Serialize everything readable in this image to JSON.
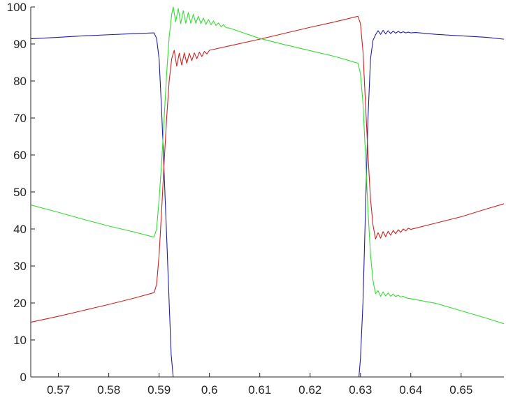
{
  "chart_data": {
    "type": "line",
    "title": "",
    "xlabel": "",
    "ylabel": "",
    "xlim": [
      0.5645,
      0.6585
    ],
    "ylim": [
      0,
      100
    ],
    "grid": false,
    "legend": "none",
    "x_ticks": [
      {
        "value": 0.57,
        "label": "0.57"
      },
      {
        "value": 0.58,
        "label": "0.58"
      },
      {
        "value": 0.59,
        "label": "0.59"
      },
      {
        "value": 0.6,
        "label": "0.6"
      },
      {
        "value": 0.61,
        "label": "0.61"
      },
      {
        "value": 0.62,
        "label": "0.62"
      },
      {
        "value": 0.63,
        "label": "0.63"
      },
      {
        "value": 0.64,
        "label": "0.64"
      },
      {
        "value": 0.65,
        "label": "0.65"
      }
    ],
    "y_ticks": [
      {
        "value": 0,
        "label": "0"
      },
      {
        "value": 10,
        "label": "10"
      },
      {
        "value": 20,
        "label": "20"
      },
      {
        "value": 30,
        "label": "30"
      },
      {
        "value": 40,
        "label": "40"
      },
      {
        "value": 50,
        "label": "50"
      },
      {
        "value": 60,
        "label": "60"
      },
      {
        "value": 70,
        "label": "70"
      },
      {
        "value": 80,
        "label": "80"
      },
      {
        "value": 90,
        "label": "90"
      },
      {
        "value": 100,
        "label": "100"
      }
    ],
    "series": [
      {
        "color": "#1f1fa0",
        "points": [
          [
            0.5645,
            91.4
          ],
          [
            0.57,
            91.8
          ],
          [
            0.575,
            92.2
          ],
          [
            0.58,
            92.5
          ],
          [
            0.585,
            92.8
          ],
          [
            0.589,
            93.0
          ],
          [
            0.5895,
            91.5
          ],
          [
            0.59,
            86.0
          ],
          [
            0.5905,
            72.0
          ],
          [
            0.591,
            55.0
          ],
          [
            0.5915,
            38.0
          ],
          [
            0.592,
            20.0
          ],
          [
            0.5924,
            6.0
          ],
          [
            0.5928,
            0.0
          ],
          [
            0.6,
            0.0
          ],
          [
            0.61,
            0.0
          ],
          [
            0.62,
            0.0
          ],
          [
            0.6297,
            0.0
          ],
          [
            0.63,
            5.0
          ],
          [
            0.6305,
            20.0
          ],
          [
            0.631,
            45.0
          ],
          [
            0.6315,
            70.0
          ],
          [
            0.632,
            86.0
          ],
          [
            0.6325,
            91.0
          ],
          [
            0.633,
            92.5
          ],
          [
            0.6335,
            93.6
          ],
          [
            0.634,
            92.6
          ],
          [
            0.6345,
            93.7
          ],
          [
            0.635,
            92.7
          ],
          [
            0.6355,
            93.6
          ],
          [
            0.636,
            92.8
          ],
          [
            0.6365,
            93.5
          ],
          [
            0.637,
            92.9
          ],
          [
            0.6375,
            93.4
          ],
          [
            0.638,
            93.0
          ],
          [
            0.6385,
            93.3
          ],
          [
            0.639,
            93.0
          ],
          [
            0.6395,
            93.2
          ],
          [
            0.64,
            93.0
          ],
          [
            0.641,
            93.1
          ],
          [
            0.645,
            92.6
          ],
          [
            0.65,
            92.2
          ],
          [
            0.655,
            91.8
          ],
          [
            0.6585,
            91.3
          ]
        ]
      },
      {
        "color": "#cc2222",
        "points": [
          [
            0.5645,
            14.8
          ],
          [
            0.57,
            16.4
          ],
          [
            0.575,
            18.0
          ],
          [
            0.58,
            19.6
          ],
          [
            0.585,
            21.3
          ],
          [
            0.589,
            22.8
          ],
          [
            0.5895,
            25.0
          ],
          [
            0.59,
            33.0
          ],
          [
            0.5905,
            45.0
          ],
          [
            0.591,
            58.0
          ],
          [
            0.5915,
            70.0
          ],
          [
            0.592,
            80.0
          ],
          [
            0.5925,
            86.0
          ],
          [
            0.593,
            88.3
          ],
          [
            0.5935,
            84.0
          ],
          [
            0.594,
            87.5
          ],
          [
            0.5945,
            84.3
          ],
          [
            0.595,
            87.6
          ],
          [
            0.5955,
            84.8
          ],
          [
            0.596,
            87.5
          ],
          [
            0.5965,
            85.5
          ],
          [
            0.597,
            87.6
          ],
          [
            0.5975,
            86.0
          ],
          [
            0.598,
            87.8
          ],
          [
            0.5985,
            86.6
          ],
          [
            0.599,
            88.0
          ],
          [
            0.5995,
            87.3
          ],
          [
            0.6,
            88.3
          ],
          [
            0.605,
            89.8
          ],
          [
            0.61,
            91.3
          ],
          [
            0.615,
            92.9
          ],
          [
            0.62,
            94.5
          ],
          [
            0.625,
            96.0
          ],
          [
            0.6295,
            97.5
          ],
          [
            0.63,
            95.5
          ],
          [
            0.6305,
            88.0
          ],
          [
            0.631,
            74.0
          ],
          [
            0.6315,
            60.0
          ],
          [
            0.632,
            48.0
          ],
          [
            0.6325,
            41.0
          ],
          [
            0.633,
            37.3
          ],
          [
            0.6335,
            39.0
          ],
          [
            0.634,
            37.5
          ],
          [
            0.6345,
            39.3
          ],
          [
            0.635,
            37.9
          ],
          [
            0.6355,
            39.4
          ],
          [
            0.636,
            38.3
          ],
          [
            0.6365,
            39.6
          ],
          [
            0.637,
            38.7
          ],
          [
            0.6375,
            39.8
          ],
          [
            0.638,
            39.1
          ],
          [
            0.6385,
            40.0
          ],
          [
            0.639,
            39.5
          ],
          [
            0.6395,
            40.2
          ],
          [
            0.64,
            39.9
          ],
          [
            0.645,
            41.6
          ],
          [
            0.65,
            43.3
          ],
          [
            0.655,
            45.4
          ],
          [
            0.6585,
            46.8
          ]
        ]
      },
      {
        "color": "#33dd33",
        "points": [
          [
            0.5645,
            46.5
          ],
          [
            0.57,
            44.5
          ],
          [
            0.575,
            42.6
          ],
          [
            0.58,
            40.8
          ],
          [
            0.585,
            39.2
          ],
          [
            0.589,
            37.8
          ],
          [
            0.5895,
            40.0
          ],
          [
            0.59,
            48.0
          ],
          [
            0.5905,
            58.0
          ],
          [
            0.591,
            70.0
          ],
          [
            0.5915,
            82.0
          ],
          [
            0.592,
            92.0
          ],
          [
            0.5925,
            98.0
          ],
          [
            0.5928,
            100.0
          ],
          [
            0.5933,
            96.0
          ],
          [
            0.5938,
            99.6
          ],
          [
            0.5943,
            95.5
          ],
          [
            0.5948,
            99.0
          ],
          [
            0.5953,
            95.6
          ],
          [
            0.5958,
            98.5
          ],
          [
            0.5963,
            95.6
          ],
          [
            0.5968,
            98.0
          ],
          [
            0.5973,
            95.6
          ],
          [
            0.5978,
            97.5
          ],
          [
            0.5983,
            95.5
          ],
          [
            0.5988,
            97.0
          ],
          [
            0.5993,
            95.3
          ],
          [
            0.5998,
            96.6
          ],
          [
            0.6003,
            95.2
          ],
          [
            0.6008,
            96.2
          ],
          [
            0.6013,
            95.0
          ],
          [
            0.6018,
            95.7
          ],
          [
            0.6023,
            94.7
          ],
          [
            0.6028,
            95.2
          ],
          [
            0.6033,
            94.4
          ],
          [
            0.604,
            94.3
          ],
          [
            0.61,
            91.5
          ],
          [
            0.615,
            89.8
          ],
          [
            0.62,
            88.2
          ],
          [
            0.625,
            86.6
          ],
          [
            0.6295,
            84.8
          ],
          [
            0.63,
            82.0
          ],
          [
            0.6305,
            74.0
          ],
          [
            0.631,
            60.0
          ],
          [
            0.6315,
            45.0
          ],
          [
            0.632,
            33.0
          ],
          [
            0.6325,
            26.0
          ],
          [
            0.633,
            22.5
          ],
          [
            0.6335,
            23.3
          ],
          [
            0.634,
            21.8
          ],
          [
            0.6345,
            23.0
          ],
          [
            0.635,
            21.9
          ],
          [
            0.6355,
            22.7
          ],
          [
            0.636,
            21.8
          ],
          [
            0.6365,
            22.4
          ],
          [
            0.637,
            21.7
          ],
          [
            0.6375,
            22.1
          ],
          [
            0.638,
            21.6
          ],
          [
            0.6385,
            21.8
          ],
          [
            0.639,
            21.4
          ],
          [
            0.645,
            19.9
          ],
          [
            0.65,
            17.9
          ],
          [
            0.655,
            15.9
          ],
          [
            0.6585,
            14.4
          ]
        ]
      }
    ]
  }
}
